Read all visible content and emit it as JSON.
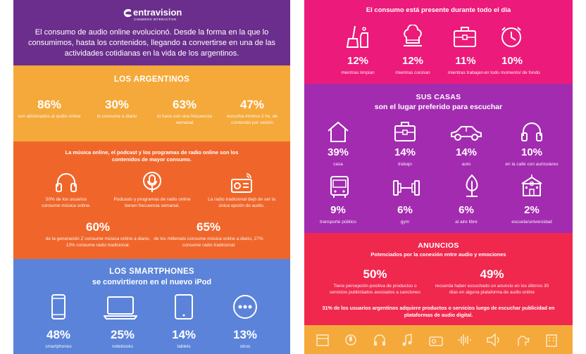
{
  "left": {
    "brand": {
      "name": "entravision",
      "sub": "CISNEROS INTERACTIVE"
    },
    "intro": "El consumo de audio online evolucionó. Desde la forma en la que lo consumimos, hasta los contenidos, llegando a convertirse en una de las actividades cotidianas en la vida de los argentinos.",
    "argentinos": {
      "title": "LOS ARGENTINOS",
      "stats": [
        {
          "value": "86%",
          "caption": "son aficionados al audio online"
        },
        {
          "value": "30%",
          "caption": "lo consume a diario"
        },
        {
          "value": "63%",
          "caption": "lo hace con una frecuencia semanal"
        },
        {
          "value": "47%",
          "caption": "escucha mínimo 2 hs. de contenido por sesión"
        }
      ]
    },
    "musica": {
      "heading": "La música online, el podcast y los programas de radio online son los contenidos de mayor consumo.",
      "items": [
        {
          "icon": "headphones-icon",
          "caption": "50% de los usuarios consume música online."
        },
        {
          "icon": "podcast-mic-icon",
          "caption": "Podcasts y programas de radio online tienen frecuencia semanal."
        },
        {
          "icon": "radio-icon",
          "caption": "La radio tradicional dejó de ser la única opción de audio."
        }
      ],
      "bottom": [
        {
          "value": "60%",
          "caption": "de la generación Z consume música online a diario, 13% consume radio tradicional."
        },
        {
          "value": "65%",
          "caption": "de los millenials consume música online a diario, 27% consume radio tradicional"
        }
      ]
    },
    "smartphones": {
      "title1": "LOS SMARTPHONES",
      "title2": "se convirtieron en el nuevo iPod",
      "stats": [
        {
          "icon": "smartphone-icon",
          "value": "48%",
          "caption": "smartphones"
        },
        {
          "icon": "laptop-icon",
          "value": "25%",
          "caption": "notebooks"
        },
        {
          "icon": "tablet-icon",
          "value": "14%",
          "caption": "tablets"
        },
        {
          "icon": "more-dots-icon",
          "value": "13%",
          "caption": "otros"
        }
      ]
    }
  },
  "right": {
    "consumo": {
      "title": "El consumo está presente durante todo el día",
      "stats": [
        {
          "icon": "cleaning-icon",
          "value": "12%",
          "caption": "mientras limpian"
        },
        {
          "icon": "chef-hat-icon",
          "value": "12%",
          "caption": "mientras cocinan"
        },
        {
          "icon": "briefcase-icon",
          "value": "11%",
          "caption": "mientras trabajan"
        },
        {
          "icon": "clock-icon",
          "value": "10%",
          "caption": "en todo momento/ de fondo"
        }
      ]
    },
    "casas": {
      "title1": "SUS CASAS",
      "title2": "son el lugar preferido para escuchar",
      "stats": [
        {
          "icon": "house-icon",
          "value": "39%",
          "caption": "casa"
        },
        {
          "icon": "briefcase-icon",
          "value": "14%",
          "caption": "trabajo"
        },
        {
          "icon": "car-icon",
          "value": "14%",
          "caption": "auto"
        },
        {
          "icon": "headphones-icon",
          "value": "10%",
          "caption": "en la calle con auriculares"
        },
        {
          "icon": "bus-icon",
          "value": "9%",
          "caption": "transporte público"
        },
        {
          "icon": "dumbbell-icon",
          "value": "6%",
          "caption": "gym"
        },
        {
          "icon": "tree-icon",
          "value": "6%",
          "caption": "al aire libre"
        },
        {
          "icon": "school-icon",
          "value": "2%",
          "caption": "escuela/universidad"
        }
      ]
    },
    "anuncios": {
      "title": "ANUNCIOS",
      "subtitle": "Potenciados por la conexión entre audio y emociones",
      "stats": [
        {
          "value": "50%",
          "caption": "Tiene percepción positiva de productos o servicios publicitados asociados a canciones"
        },
        {
          "value": "49%",
          "caption": "recuerda haber escuchado un anuncio en los últimos 30 días en alguna plataforma de audio online"
        }
      ],
      "footer": "31% de los usuarios argentinos adquiere productos o servicios luego de escuchar publicidad en plataformas de audio digital."
    },
    "footer_icons": [
      "calendar-icon",
      "podcast-icon",
      "headphones-icon",
      "music-note-icon",
      "radio-icon",
      "waveform-icon",
      "speaker-icon",
      "dog-icon",
      "building-icon"
    ]
  },
  "colors": {
    "purple": "#6b2e8c",
    "orange_light": "#f5a93a",
    "orange": "#f0662a",
    "blue": "#5b83d9",
    "magenta": "#ec1a7a",
    "violet": "#a32bb0",
    "red": "#f0284e",
    "yellow": "#f5a93a"
  }
}
